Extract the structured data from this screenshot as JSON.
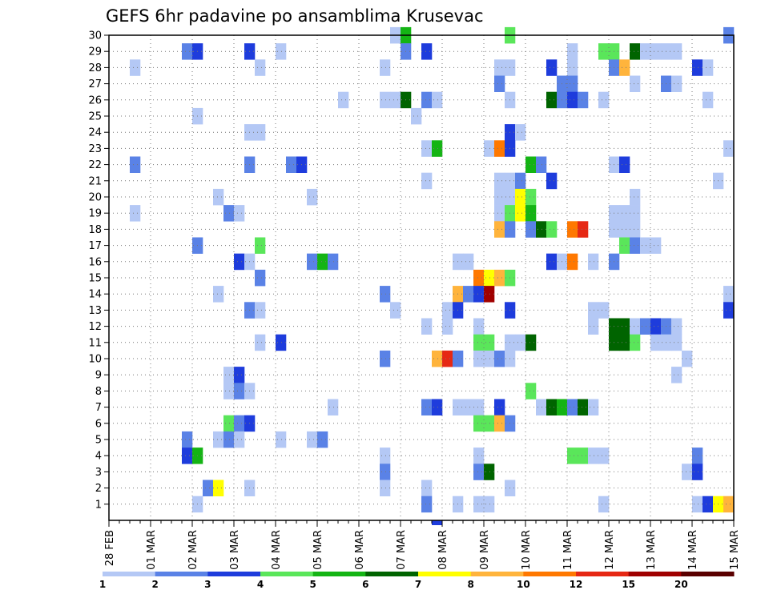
{
  "chart_data": {
    "type": "heatmap",
    "title": "GEFS 6hr padavine po ansamblima Krusevac",
    "xlabel": "",
    "ylabel": "",
    "x_tick_labels": [
      "28 FEB",
      "01 MAR",
      "02 MAR",
      "03 MAR",
      "04 MAR",
      "05 MAR",
      "06 MAR",
      "07 MAR",
      "08 MAR",
      "09 MAR",
      "10 MAR",
      "11 MAR",
      "12 MAR",
      "13 MAR",
      "14 MAR",
      "15 MAR"
    ],
    "x_range": [
      0,
      60
    ],
    "y_range": [
      0,
      30
    ],
    "y_ticks": [
      1,
      2,
      3,
      4,
      5,
      6,
      7,
      8,
      9,
      10,
      11,
      12,
      13,
      14,
      15,
      16,
      17,
      18,
      19,
      20,
      21,
      22,
      23,
      24,
      25,
      26,
      27,
      28,
      29,
      30
    ],
    "grid": true,
    "colorbar": {
      "labels": [
        "1",
        "2",
        "3",
        "4",
        "5",
        "6",
        "7",
        "8",
        "10",
        "12",
        "15",
        "20"
      ],
      "colors": [
        "#b4c8f5",
        "#5a82e6",
        "#1e3cdc",
        "#5ae65a",
        "#14b414",
        "#006400",
        "#ffff00",
        "#ffb43c",
        "#ff7800",
        "#e62814",
        "#a00000",
        "#5a0000"
      ]
    },
    "bottom_strip": [
      {
        "col": 31.5,
        "level": 2
      }
    ],
    "cells": [
      {
        "col": 27.5,
        "row": 30,
        "level": 0
      },
      {
        "col": 28.5,
        "row": 30,
        "level": 4
      },
      {
        "col": 38.5,
        "row": 30,
        "level": 3
      },
      {
        "col": 59.5,
        "row": 30,
        "level": 1
      },
      {
        "col": 7.5,
        "row": 29,
        "level": 1
      },
      {
        "col": 8.5,
        "row": 29,
        "level": 2
      },
      {
        "col": 13.5,
        "row": 29,
        "level": 2
      },
      {
        "col": 16.5,
        "row": 29,
        "level": 0
      },
      {
        "col": 28.5,
        "row": 29,
        "level": 1
      },
      {
        "col": 30.5,
        "row": 29,
        "level": 2
      },
      {
        "col": 44.5,
        "row": 29,
        "level": 0
      },
      {
        "col": 47.5,
        "row": 29,
        "level": 3
      },
      {
        "col": 48.5,
        "row": 29,
        "level": 3
      },
      {
        "col": 50.5,
        "row": 29,
        "level": 5
      },
      {
        "col": 51.5,
        "row": 29,
        "level": 0
      },
      {
        "col": 52.5,
        "row": 29,
        "level": 0
      },
      {
        "col": 53.5,
        "row": 29,
        "level": 0
      },
      {
        "col": 54.5,
        "row": 29,
        "level": 0
      },
      {
        "col": 2.5,
        "row": 28,
        "level": 0
      },
      {
        "col": 14.5,
        "row": 28,
        "level": 0
      },
      {
        "col": 26.5,
        "row": 28,
        "level": 0
      },
      {
        "col": 37.5,
        "row": 28,
        "level": 0
      },
      {
        "col": 38.5,
        "row": 28,
        "level": 0
      },
      {
        "col": 42.5,
        "row": 28,
        "level": 2
      },
      {
        "col": 44.5,
        "row": 28,
        "level": 0
      },
      {
        "col": 48.5,
        "row": 28,
        "level": 1
      },
      {
        "col": 49.5,
        "row": 28,
        "level": 7
      },
      {
        "col": 56.5,
        "row": 28,
        "level": 2
      },
      {
        "col": 57.5,
        "row": 28,
        "level": 0
      },
      {
        "col": 37.5,
        "row": 27,
        "level": 1
      },
      {
        "col": 43.5,
        "row": 27,
        "level": 1
      },
      {
        "col": 44.5,
        "row": 27,
        "level": 1
      },
      {
        "col": 50.5,
        "row": 27,
        "level": 0
      },
      {
        "col": 53.5,
        "row": 27,
        "level": 1
      },
      {
        "col": 54.5,
        "row": 27,
        "level": 0
      },
      {
        "col": 22.5,
        "row": 26,
        "level": 0
      },
      {
        "col": 26.5,
        "row": 26,
        "level": 0
      },
      {
        "col": 27.5,
        "row": 26,
        "level": 0
      },
      {
        "col": 28.5,
        "row": 26,
        "level": 5
      },
      {
        "col": 30.5,
        "row": 26,
        "level": 1
      },
      {
        "col": 31.5,
        "row": 26,
        "level": 0
      },
      {
        "col": 38.5,
        "row": 26,
        "level": 0
      },
      {
        "col": 42.5,
        "row": 26,
        "level": 5
      },
      {
        "col": 43.5,
        "row": 26,
        "level": 1
      },
      {
        "col": 44.5,
        "row": 26,
        "level": 2
      },
      {
        "col": 45.5,
        "row": 26,
        "level": 1
      },
      {
        "col": 47.5,
        "row": 26,
        "level": 0
      },
      {
        "col": 57.5,
        "row": 26,
        "level": 0
      },
      {
        "col": 8.5,
        "row": 25,
        "level": 0
      },
      {
        "col": 29.5,
        "row": 25,
        "level": 0
      },
      {
        "col": 38.5,
        "row": 24,
        "level": 2
      },
      {
        "col": 39.5,
        "row": 24,
        "level": 0
      },
      {
        "col": 13.5,
        "row": 24,
        "level": 0
      },
      {
        "col": 14.5,
        "row": 24,
        "level": 0
      },
      {
        "col": 30.5,
        "row": 23,
        "level": 0
      },
      {
        "col": 31.5,
        "row": 23,
        "level": 4
      },
      {
        "col": 36.5,
        "row": 23,
        "level": 0
      },
      {
        "col": 37.5,
        "row": 23,
        "level": 8
      },
      {
        "col": 38.5,
        "row": 23,
        "level": 2
      },
      {
        "col": 59.5,
        "row": 23,
        "level": 0
      },
      {
        "col": 2.5,
        "row": 22,
        "level": 1
      },
      {
        "col": 13.5,
        "row": 22,
        "level": 1
      },
      {
        "col": 17.5,
        "row": 22,
        "level": 1
      },
      {
        "col": 18.5,
        "row": 22,
        "level": 2
      },
      {
        "col": 40.5,
        "row": 22,
        "level": 4
      },
      {
        "col": 41.5,
        "row": 22,
        "level": 1
      },
      {
        "col": 48.5,
        "row": 22,
        "level": 0
      },
      {
        "col": 49.5,
        "row": 22,
        "level": 2
      },
      {
        "col": 30.5,
        "row": 21,
        "level": 0
      },
      {
        "col": 37.5,
        "row": 21,
        "level": 0
      },
      {
        "col": 38.5,
        "row": 21,
        "level": 0
      },
      {
        "col": 39.5,
        "row": 21,
        "level": 1
      },
      {
        "col": 42.5,
        "row": 21,
        "level": 2
      },
      {
        "col": 58.5,
        "row": 21,
        "level": 0
      },
      {
        "col": 10.5,
        "row": 20,
        "level": 0
      },
      {
        "col": 19.5,
        "row": 20,
        "level": 0
      },
      {
        "col": 37.5,
        "row": 20,
        "level": 0
      },
      {
        "col": 38.5,
        "row": 20,
        "level": 0
      },
      {
        "col": 39.5,
        "row": 20,
        "level": 6
      },
      {
        "col": 40.5,
        "row": 20,
        "level": 3
      },
      {
        "col": 50.5,
        "row": 20,
        "level": 0
      },
      {
        "col": 2.5,
        "row": 19,
        "level": 0
      },
      {
        "col": 11.5,
        "row": 19,
        "level": 1
      },
      {
        "col": 12.5,
        "row": 19,
        "level": 0
      },
      {
        "col": 37.5,
        "row": 19,
        "level": 0
      },
      {
        "col": 38.5,
        "row": 19,
        "level": 3
      },
      {
        "col": 39.5,
        "row": 19,
        "level": 6
      },
      {
        "col": 40.5,
        "row": 19,
        "level": 4
      },
      {
        "col": 48.5,
        "row": 19,
        "level": 0
      },
      {
        "col": 49.5,
        "row": 19,
        "level": 0
      },
      {
        "col": 50.5,
        "row": 19,
        "level": 0
      },
      {
        "col": 37.5,
        "row": 18,
        "level": 7
      },
      {
        "col": 38.5,
        "row": 18,
        "level": 1
      },
      {
        "col": 40.5,
        "row": 18,
        "level": 1
      },
      {
        "col": 41.5,
        "row": 18,
        "level": 5
      },
      {
        "col": 42.5,
        "row": 18,
        "level": 3
      },
      {
        "col": 44.5,
        "row": 18,
        "level": 8
      },
      {
        "col": 45.5,
        "row": 18,
        "level": 9
      },
      {
        "col": 48.5,
        "row": 18,
        "level": 0
      },
      {
        "col": 49.5,
        "row": 18,
        "level": 0
      },
      {
        "col": 50.5,
        "row": 18,
        "level": 0
      },
      {
        "col": 8.5,
        "row": 17,
        "level": 1
      },
      {
        "col": 14.5,
        "row": 17,
        "level": 3
      },
      {
        "col": 49.5,
        "row": 17,
        "level": 3
      },
      {
        "col": 50.5,
        "row": 17,
        "level": 1
      },
      {
        "col": 51.5,
        "row": 17,
        "level": 0
      },
      {
        "col": 52.5,
        "row": 17,
        "level": 0
      },
      {
        "col": 12.5,
        "row": 16,
        "level": 2
      },
      {
        "col": 13.5,
        "row": 16,
        "level": 0
      },
      {
        "col": 19.5,
        "row": 16,
        "level": 1
      },
      {
        "col": 20.5,
        "row": 16,
        "level": 4
      },
      {
        "col": 21.5,
        "row": 16,
        "level": 1
      },
      {
        "col": 33.5,
        "row": 16,
        "level": 0
      },
      {
        "col": 34.5,
        "row": 16,
        "level": 0
      },
      {
        "col": 42.5,
        "row": 16,
        "level": 2
      },
      {
        "col": 43.5,
        "row": 16,
        "level": 0
      },
      {
        "col": 44.5,
        "row": 16,
        "level": 8
      },
      {
        "col": 46.5,
        "row": 16,
        "level": 0
      },
      {
        "col": 48.5,
        "row": 16,
        "level": 1
      },
      {
        "col": 14.5,
        "row": 15,
        "level": 1
      },
      {
        "col": 35.5,
        "row": 15,
        "level": 8
      },
      {
        "col": 36.5,
        "row": 15,
        "level": 6
      },
      {
        "col": 37.5,
        "row": 15,
        "level": 7
      },
      {
        "col": 38.5,
        "row": 15,
        "level": 3
      },
      {
        "col": 10.5,
        "row": 14,
        "level": 0
      },
      {
        "col": 26.5,
        "row": 14,
        "level": 1
      },
      {
        "col": 33.5,
        "row": 14,
        "level": 7
      },
      {
        "col": 34.5,
        "row": 14,
        "level": 1
      },
      {
        "col": 35.5,
        "row": 14,
        "level": 2
      },
      {
        "col": 36.5,
        "row": 14,
        "level": 10
      },
      {
        "col": 59.5,
        "row": 14,
        "level": 0
      },
      {
        "col": 13.5,
        "row": 13,
        "level": 1
      },
      {
        "col": 14.5,
        "row": 13,
        "level": 0
      },
      {
        "col": 27.5,
        "row": 13,
        "level": 0
      },
      {
        "col": 32.5,
        "row": 13,
        "level": 0
      },
      {
        "col": 33.5,
        "row": 13,
        "level": 2
      },
      {
        "col": 38.5,
        "row": 13,
        "level": 2
      },
      {
        "col": 46.5,
        "row": 13,
        "level": 0
      },
      {
        "col": 47.5,
        "row": 13,
        "level": 0
      },
      {
        "col": 59.5,
        "row": 13,
        "level": 2
      },
      {
        "col": 30.5,
        "row": 12,
        "level": 0
      },
      {
        "col": 32.5,
        "row": 12,
        "level": 0
      },
      {
        "col": 35.5,
        "row": 12,
        "level": 0
      },
      {
        "col": 46.5,
        "row": 12,
        "level": 0
      },
      {
        "col": 48.5,
        "row": 12,
        "level": 5
      },
      {
        "col": 49.5,
        "row": 12,
        "level": 5
      },
      {
        "col": 50.5,
        "row": 12,
        "level": 0
      },
      {
        "col": 51.5,
        "row": 12,
        "level": 1
      },
      {
        "col": 52.5,
        "row": 12,
        "level": 2
      },
      {
        "col": 53.5,
        "row": 12,
        "level": 1
      },
      {
        "col": 54.5,
        "row": 12,
        "level": 0
      },
      {
        "col": 14.5,
        "row": 11,
        "level": 0
      },
      {
        "col": 16.5,
        "row": 11,
        "level": 2
      },
      {
        "col": 35.5,
        "row": 11,
        "level": 3
      },
      {
        "col": 36.5,
        "row": 11,
        "level": 3
      },
      {
        "col": 38.5,
        "row": 11,
        "level": 0
      },
      {
        "col": 39.5,
        "row": 11,
        "level": 0
      },
      {
        "col": 40.5,
        "row": 11,
        "level": 5
      },
      {
        "col": 48.5,
        "row": 11,
        "level": 5
      },
      {
        "col": 49.5,
        "row": 11,
        "level": 5
      },
      {
        "col": 50.5,
        "row": 11,
        "level": 3
      },
      {
        "col": 52.5,
        "row": 11,
        "level": 0
      },
      {
        "col": 53.5,
        "row": 11,
        "level": 0
      },
      {
        "col": 54.5,
        "row": 11,
        "level": 0
      },
      {
        "col": 26.5,
        "row": 10,
        "level": 1
      },
      {
        "col": 31.5,
        "row": 10,
        "level": 7
      },
      {
        "col": 32.5,
        "row": 10,
        "level": 9
      },
      {
        "col": 33.5,
        "row": 10,
        "level": 1
      },
      {
        "col": 35.5,
        "row": 10,
        "level": 0
      },
      {
        "col": 36.5,
        "row": 10,
        "level": 0
      },
      {
        "col": 37.5,
        "row": 10,
        "level": 1
      },
      {
        "col": 38.5,
        "row": 10,
        "level": 0
      },
      {
        "col": 55.5,
        "row": 10,
        "level": 0
      },
      {
        "col": 11.5,
        "row": 9,
        "level": 0
      },
      {
        "col": 12.5,
        "row": 9,
        "level": 2
      },
      {
        "col": 54.5,
        "row": 9,
        "level": 0
      },
      {
        "col": 11.5,
        "row": 8,
        "level": 0
      },
      {
        "col": 12.5,
        "row": 8,
        "level": 1
      },
      {
        "col": 13.5,
        "row": 8,
        "level": 0
      },
      {
        "col": 40.5,
        "row": 8,
        "level": 3
      },
      {
        "col": 21.5,
        "row": 7,
        "level": 0
      },
      {
        "col": 30.5,
        "row": 7,
        "level": 1
      },
      {
        "col": 31.5,
        "row": 7,
        "level": 2
      },
      {
        "col": 33.5,
        "row": 7,
        "level": 0
      },
      {
        "col": 34.5,
        "row": 7,
        "level": 0
      },
      {
        "col": 35.5,
        "row": 7,
        "level": 0
      },
      {
        "col": 37.5,
        "row": 7,
        "level": 2
      },
      {
        "col": 41.5,
        "row": 7,
        "level": 0
      },
      {
        "col": 42.5,
        "row": 7,
        "level": 5
      },
      {
        "col": 43.5,
        "row": 7,
        "level": 4
      },
      {
        "col": 44.5,
        "row": 7,
        "level": 1
      },
      {
        "col": 45.5,
        "row": 7,
        "level": 5
      },
      {
        "col": 46.5,
        "row": 7,
        "level": 0
      },
      {
        "col": 11.5,
        "row": 6,
        "level": 3
      },
      {
        "col": 12.5,
        "row": 6,
        "level": 1
      },
      {
        "col": 13.5,
        "row": 6,
        "level": 2
      },
      {
        "col": 35.5,
        "row": 6,
        "level": 3
      },
      {
        "col": 36.5,
        "row": 6,
        "level": 3
      },
      {
        "col": 37.5,
        "row": 6,
        "level": 7
      },
      {
        "col": 38.5,
        "row": 6,
        "level": 1
      },
      {
        "col": 7.5,
        "row": 5,
        "level": 1
      },
      {
        "col": 10.5,
        "row": 5,
        "level": 0
      },
      {
        "col": 11.5,
        "row": 5,
        "level": 1
      },
      {
        "col": 12.5,
        "row": 5,
        "level": 0
      },
      {
        "col": 16.5,
        "row": 5,
        "level": 0
      },
      {
        "col": 19.5,
        "row": 5,
        "level": 0
      },
      {
        "col": 20.5,
        "row": 5,
        "level": 1
      },
      {
        "col": 7.5,
        "row": 4,
        "level": 2
      },
      {
        "col": 8.5,
        "row": 4,
        "level": 4
      },
      {
        "col": 26.5,
        "row": 4,
        "level": 0
      },
      {
        "col": 35.5,
        "row": 4,
        "level": 0
      },
      {
        "col": 44.5,
        "row": 4,
        "level": 3
      },
      {
        "col": 45.5,
        "row": 4,
        "level": 3
      },
      {
        "col": 46.5,
        "row": 4,
        "level": 0
      },
      {
        "col": 47.5,
        "row": 4,
        "level": 0
      },
      {
        "col": 56.5,
        "row": 4,
        "level": 1
      },
      {
        "col": 26.5,
        "row": 3,
        "level": 1
      },
      {
        "col": 35.5,
        "row": 3,
        "level": 1
      },
      {
        "col": 36.5,
        "row": 3,
        "level": 5
      },
      {
        "col": 55.5,
        "row": 3,
        "level": 0
      },
      {
        "col": 56.5,
        "row": 3,
        "level": 2
      },
      {
        "col": 9.5,
        "row": 2,
        "level": 1
      },
      {
        "col": 10.5,
        "row": 2,
        "level": 6
      },
      {
        "col": 13.5,
        "row": 2,
        "level": 0
      },
      {
        "col": 26.5,
        "row": 2,
        "level": 0
      },
      {
        "col": 30.5,
        "row": 2,
        "level": 0
      },
      {
        "col": 38.5,
        "row": 2,
        "level": 0
      },
      {
        "col": 8.5,
        "row": 1,
        "level": 0
      },
      {
        "col": 30.5,
        "row": 1,
        "level": 1
      },
      {
        "col": 33.5,
        "row": 1,
        "level": 0
      },
      {
        "col": 35.5,
        "row": 1,
        "level": 0
      },
      {
        "col": 36.5,
        "row": 1,
        "level": 0
      },
      {
        "col": 47.5,
        "row": 1,
        "level": 0
      },
      {
        "col": 56.5,
        "row": 1,
        "level": 0
      },
      {
        "col": 57.5,
        "row": 1,
        "level": 2
      },
      {
        "col": 58.5,
        "row": 1,
        "level": 6
      },
      {
        "col": 59.5,
        "row": 1,
        "level": 7
      }
    ]
  }
}
